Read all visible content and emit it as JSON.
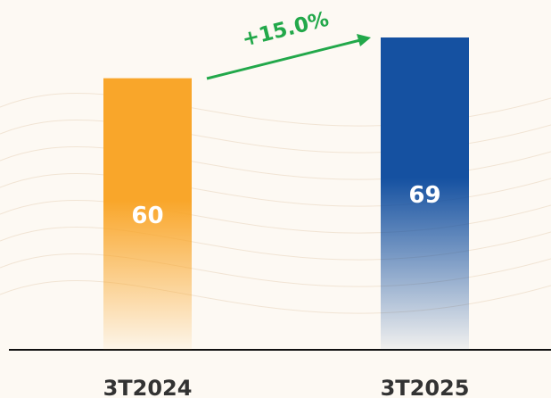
{
  "chart_data": {
    "type": "bar",
    "categories": [
      "3T2024",
      "3T2025"
    ],
    "values": [
      60,
      69
    ],
    "colors": [
      "#f9a62a",
      "#1551a1"
    ],
    "annotation": "+15.0%",
    "annotation_color": "#22a84a"
  }
}
